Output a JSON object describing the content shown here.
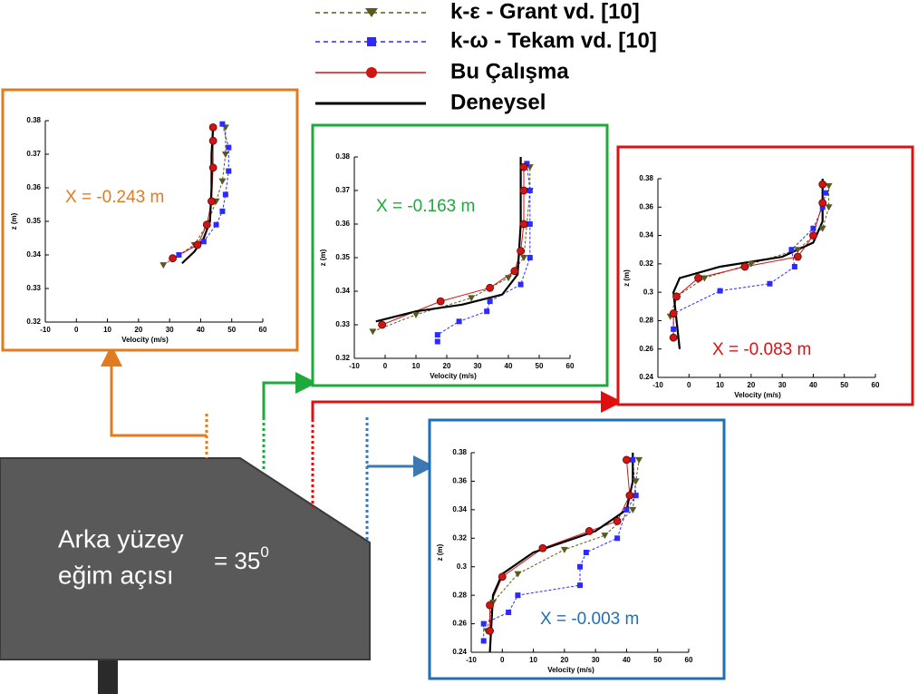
{
  "chart_data": [
    {
      "type": "line",
      "annotation": "X = -0.243 m",
      "xlabel": "Velocity (m/s)",
      "ylabel": "z (m)",
      "xlim": [
        -10,
        60
      ],
      "ylim": [
        0.32,
        0.38
      ],
      "xticks": [
        -10,
        0,
        10,
        20,
        30,
        40,
        50,
        60
      ],
      "yticks": [
        0.32,
        0.33,
        0.34,
        0.35,
        0.36,
        0.37,
        0.38
      ],
      "series": [
        {
          "name": "k-ε - Grant vd. [10]",
          "color": "#5b5a1e",
          "marker": "triangle",
          "linestyle": "dashed",
          "x": [
            28,
            38,
            42,
            45,
            47,
            48,
            48
          ],
          "values": [
            0.337,
            0.343,
            0.349,
            0.356,
            0.362,
            0.37,
            0.378
          ]
        },
        {
          "name": "k-ω - Tekam vd. [10]",
          "color": "#2b2bff",
          "marker": "square",
          "linestyle": "dashed",
          "x": [
            33,
            41,
            45,
            47,
            48,
            49,
            49,
            47
          ],
          "values": [
            0.34,
            0.344,
            0.349,
            0.353,
            0.358,
            0.365,
            0.372,
            0.379
          ]
        },
        {
          "name": "Bu Çalışma",
          "color": "#d01515",
          "marker": "circle",
          "linestyle": "solid",
          "x": [
            31,
            39,
            42,
            43.5,
            44,
            44,
            44
          ],
          "values": [
            0.339,
            0.343,
            0.349,
            0.356,
            0.366,
            0.374,
            0.378
          ]
        },
        {
          "name": "Deneysel",
          "color": "#000000",
          "marker": "none",
          "linestyle": "solid",
          "x": [
            34,
            38,
            41,
            43,
            43.5,
            43.5,
            44
          ],
          "values": [
            0.3375,
            0.341,
            0.345,
            0.35,
            0.36,
            0.37,
            0.378
          ]
        }
      ]
    },
    {
      "type": "line",
      "annotation": "X = -0.163 m",
      "xlabel": "Velocity (m/s)",
      "ylabel": "z (m)",
      "xlim": [
        -10,
        60
      ],
      "ylim": [
        0.32,
        0.38
      ],
      "xticks": [
        -10,
        0,
        10,
        20,
        30,
        40,
        50,
        60
      ],
      "yticks": [
        0.32,
        0.33,
        0.34,
        0.35,
        0.36,
        0.37,
        0.38
      ],
      "series": [
        {
          "name": "k-ε - Grant vd. [10]",
          "color": "#5b5a1e",
          "marker": "triangle",
          "linestyle": "dashed",
          "x": [
            -4,
            10,
            28,
            40,
            45,
            46,
            47,
            47
          ],
          "values": [
            0.328,
            0.333,
            0.338,
            0.344,
            0.35,
            0.36,
            0.37,
            0.377
          ]
        },
        {
          "name": "k-ω - Tekam vd. [10]",
          "color": "#2b2bff",
          "marker": "square",
          "linestyle": "dashed",
          "x": [
            17,
            17,
            24,
            33,
            34,
            44,
            47,
            47,
            47,
            46
          ],
          "values": [
            0.325,
            0.327,
            0.331,
            0.334,
            0.337,
            0.342,
            0.35,
            0.36,
            0.37,
            0.378
          ]
        },
        {
          "name": "Bu Çalışma",
          "color": "#d01515",
          "marker": "circle",
          "linestyle": "solid",
          "x": [
            -1,
            18,
            34,
            42,
            44,
            45,
            45,
            45
          ],
          "values": [
            0.33,
            0.337,
            0.341,
            0.346,
            0.352,
            0.36,
            0.37,
            0.377
          ]
        },
        {
          "name": "Deneysel",
          "color": "#000000",
          "marker": "none",
          "linestyle": "solid",
          "x": [
            -3,
            10,
            25,
            38,
            43,
            44,
            44
          ],
          "values": [
            0.331,
            0.334,
            0.336,
            0.339,
            0.345,
            0.36,
            0.38
          ]
        }
      ]
    },
    {
      "type": "line",
      "annotation": "X = -0.083 m",
      "xlabel": "Velocity (m/s)",
      "ylabel": "z (m)",
      "xlim": [
        -10,
        60
      ],
      "ylim": [
        0.24,
        0.38
      ],
      "xticks": [
        -10,
        0,
        10,
        20,
        30,
        40,
        50,
        60
      ],
      "yticks": [
        0.24,
        0.26,
        0.28,
        0.3,
        0.32,
        0.34,
        0.36,
        0.38
      ],
      "series": [
        {
          "name": "k-ε - Grant vd. [10]",
          "color": "#5b5a1e",
          "marker": "triangle",
          "linestyle": "dashed",
          "x": [
            -6,
            -4,
            5,
            20,
            35,
            43,
            45,
            45
          ],
          "values": [
            0.283,
            0.297,
            0.31,
            0.32,
            0.33,
            0.345,
            0.36,
            0.375
          ]
        },
        {
          "name": "k-ω - Tekam vd. [10]",
          "color": "#2b2bff",
          "marker": "square",
          "linestyle": "dashed",
          "x": [
            -5,
            -5,
            10,
            26,
            34,
            33,
            40,
            43,
            44
          ],
          "values": [
            0.274,
            0.285,
            0.301,
            0.306,
            0.318,
            0.33,
            0.345,
            0.36,
            0.37
          ]
        },
        {
          "name": "Bu Çalışma",
          "color": "#d01515",
          "marker": "circle",
          "linestyle": "solid",
          "x": [
            -5,
            -5,
            -4,
            3,
            18,
            35,
            40,
            43,
            43
          ],
          "values": [
            0.268,
            0.285,
            0.297,
            0.31,
            0.318,
            0.325,
            0.34,
            0.363,
            0.376
          ]
        },
        {
          "name": "Deneysel",
          "color": "#000000",
          "marker": "none",
          "linestyle": "solid",
          "x": [
            -3,
            -4,
            -5,
            -3,
            10,
            30,
            40,
            43,
            43
          ],
          "values": [
            0.26,
            0.28,
            0.3,
            0.31,
            0.318,
            0.325,
            0.335,
            0.35,
            0.38
          ]
        }
      ]
    },
    {
      "type": "line",
      "annotation": "X = -0.003 m",
      "xlabel": "Velocity (m/s)",
      "ylabel": "z (m)",
      "xlim": [
        -10,
        60
      ],
      "ylim": [
        0.24,
        0.38
      ],
      "xticks": [
        -10,
        0,
        10,
        20,
        30,
        40,
        50,
        60
      ],
      "yticks": [
        0.24,
        0.26,
        0.28,
        0.3,
        0.32,
        0.34,
        0.36,
        0.38
      ],
      "series": [
        {
          "name": "k-ε - Grant vd. [10]",
          "color": "#5b5a1e",
          "marker": "triangle",
          "linestyle": "dashed",
          "x": [
            -5,
            -3,
            5,
            20,
            33,
            42,
            43,
            44
          ],
          "values": [
            0.255,
            0.275,
            0.295,
            0.312,
            0.322,
            0.34,
            0.36,
            0.375
          ]
        },
        {
          "name": "k-ω - Tekam vd. [10]",
          "color": "#2b2bff",
          "marker": "square",
          "linestyle": "dashed",
          "x": [
            -6,
            -6,
            2,
            5,
            25,
            25,
            27,
            37,
            40,
            43,
            42
          ],
          "values": [
            0.248,
            0.26,
            0.268,
            0.28,
            0.287,
            0.3,
            0.31,
            0.32,
            0.34,
            0.35,
            0.375
          ]
        },
        {
          "name": "Bu Çalışma",
          "color": "#d01515",
          "marker": "circle",
          "linestyle": "solid",
          "x": [
            -4,
            -4,
            0,
            13,
            28,
            37,
            41,
            40
          ],
          "values": [
            0.255,
            0.273,
            0.293,
            0.313,
            0.325,
            0.332,
            0.35,
            0.375
          ]
        },
        {
          "name": "Deneysel",
          "color": "#000000",
          "marker": "none",
          "linestyle": "solid",
          "x": [
            -4,
            -3,
            0,
            10,
            30,
            40,
            42,
            42
          ],
          "values": [
            0.24,
            0.28,
            0.295,
            0.31,
            0.325,
            0.34,
            0.36,
            0.38
          ]
        }
      ]
    }
  ],
  "diagram": {
    "label_lines": [
      "Arka yüzey",
      "eğim açısı"
    ],
    "angle": "= 35",
    "angle_sup": "0"
  }
}
